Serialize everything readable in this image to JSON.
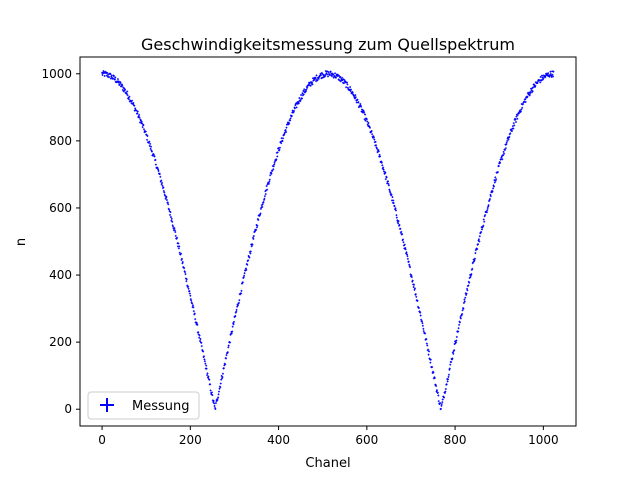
{
  "chart_data": {
    "type": "scatter",
    "title": "Geschwindigkeitsmessung zum Quellspektrum",
    "xlabel": "Chanel",
    "ylabel": "n",
    "xlim": [
      -50,
      1074
    ],
    "ylim": [
      -50,
      1050
    ],
    "xticks": [
      0,
      200,
      400,
      600,
      800,
      1000
    ],
    "yticks": [
      0,
      200,
      400,
      600,
      800,
      1000
    ],
    "grid": false,
    "legend": {
      "placement": "lower-left",
      "entries": [
        "Messung"
      ]
    },
    "series": [
      {
        "name": "Messung",
        "color": "#0000ff",
        "marker": "plus",
        "model": "n = 1000 * |cos(pi * channel / 512)|",
        "x_range": [
          0,
          1023
        ],
        "n_points": 1024,
        "x": [
          0,
          16,
          32,
          48,
          64,
          80,
          96,
          112,
          128,
          144,
          160,
          176,
          192,
          208,
          224,
          240,
          256,
          272,
          288,
          304,
          320,
          336,
          352,
          368,
          384,
          400,
          416,
          432,
          448,
          464,
          480,
          496,
          512,
          528,
          544,
          560,
          576,
          592,
          608,
          624,
          640,
          656,
          672,
          688,
          704,
          720,
          736,
          752,
          768,
          784,
          800,
          816,
          832,
          848,
          864,
          880,
          896,
          912,
          928,
          944,
          960,
          976,
          992,
          1008,
          1023
        ],
        "y": [
          1000,
          995,
          981,
          957,
          924,
          882,
          831,
          773,
          707,
          634,
          556,
          471,
          383,
          290,
          195,
          98,
          0,
          98,
          195,
          290,
          383,
          471,
          556,
          634,
          707,
          773,
          831,
          882,
          924,
          957,
          981,
          995,
          1000,
          995,
          981,
          957,
          924,
          882,
          831,
          773,
          707,
          634,
          556,
          471,
          383,
          290,
          195,
          98,
          0,
          98,
          195,
          290,
          383,
          471,
          556,
          634,
          707,
          773,
          831,
          882,
          924,
          957,
          981,
          995,
          1000
        ]
      }
    ]
  }
}
